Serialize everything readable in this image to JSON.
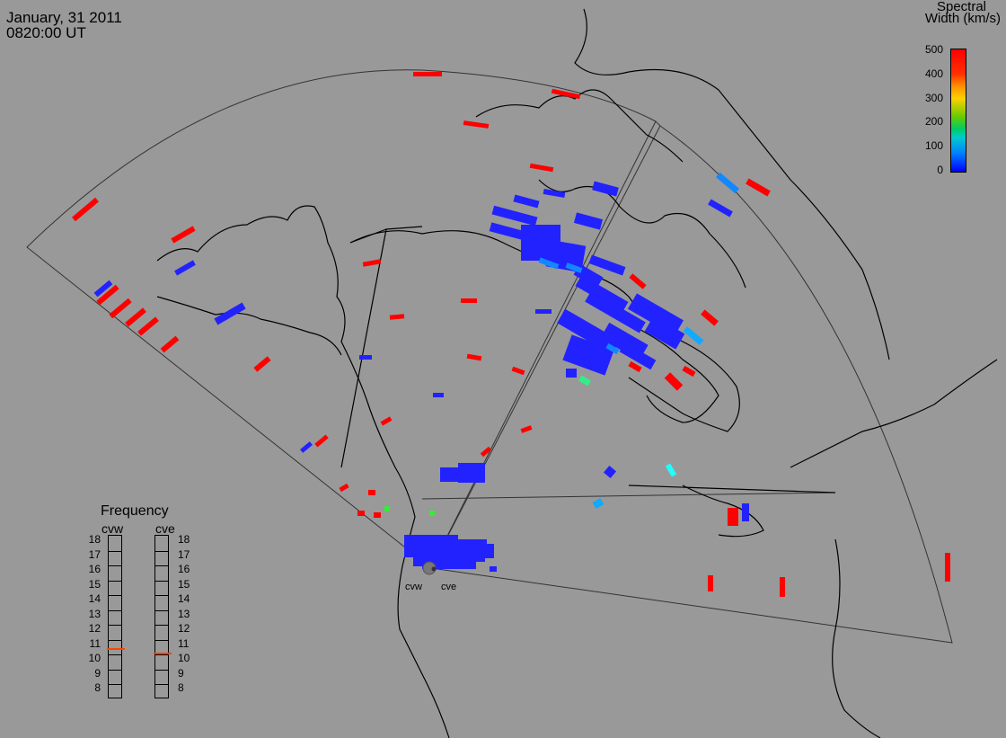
{
  "header": {
    "date": "January, 31 2011",
    "time": "0820:00 UT"
  },
  "colorbar": {
    "title_line1": "Spectral",
    "title_line2": "Width (km/s)",
    "ticks": [
      "500",
      "400",
      "300",
      "200",
      "100",
      "0"
    ],
    "colors": [
      "#ff0000",
      "#ff8000",
      "#ffcc00",
      "#33cc33",
      "#00cccc",
      "#0000ff"
    ]
  },
  "frequency_panel": {
    "title": "Frequency",
    "radars": [
      {
        "name": "cvw",
        "value": 10.9
      },
      {
        "name": "cve",
        "value": 10.6
      }
    ],
    "ticks": [
      "18",
      "17",
      "16",
      "15",
      "14",
      "13",
      "12",
      "11",
      "10",
      "9",
      "8"
    ],
    "indicator_color": "#ff4400"
  },
  "sites": [
    {
      "name": "cvw"
    },
    {
      "name": "cve"
    }
  ],
  "colors": {
    "background": "#999999",
    "coastline": "#000000",
    "fov_outline": "#333333",
    "high_width": "#ff0000",
    "low_width": "#0000ff",
    "mid_width": "#1188ff"
  }
}
